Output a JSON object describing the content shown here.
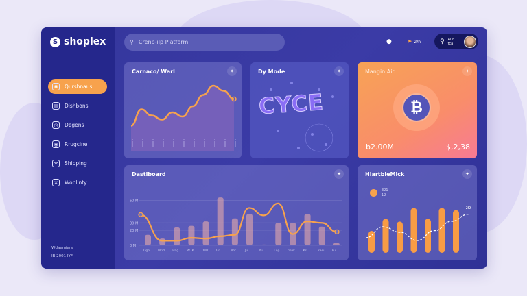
{
  "brand": {
    "name": "shoplex"
  },
  "sidebar": {
    "items": [
      {
        "label": "Qurshnaus",
        "icon": "dashboard-icon",
        "active": true
      },
      {
        "label": "Dishbons",
        "icon": "layout-icon"
      },
      {
        "label": "Degens",
        "icon": "clock-icon"
      },
      {
        "label": "Rrugcine",
        "icon": "image-icon"
      },
      {
        "label": "Shipping",
        "icon": "globe-icon"
      },
      {
        "label": "Woplinty",
        "icon": "shuffle-icon"
      }
    ],
    "footer_line1": "Wdaemiars",
    "footer_line2": "IB 2001 IYF"
  },
  "header": {
    "search_placeholder": "Crenp-ilp Platform",
    "notification_count": "2/h",
    "user_line1": "Aun",
    "user_line2": "fca"
  },
  "cards": {
    "trend": {
      "title": "Carnaco/ Warl"
    },
    "mode": {
      "title": "Dy Mode",
      "art_text": "CYCE"
    },
    "crypto": {
      "title": "Mangin Aid",
      "left_value": "b2.00M",
      "right_value": "$,2,38",
      "icon": "bitcoin-icon"
    },
    "dashboard": {
      "title": "Dastlboard"
    },
    "heartbeat": {
      "title": "HlartbleMick",
      "legend_line1": "321",
      "legend_line2": "12",
      "end_label": "2Kt"
    }
  },
  "colors": {
    "accent": "#f7a24d",
    "sidebar": "#25278c",
    "panel": "#3b3ba6"
  },
  "chart_data": [
    {
      "type": "line",
      "values": [
        10,
        42,
        30,
        22,
        36,
        28,
        48,
        70,
        88,
        78,
        62
      ]
    },
    {
      "type": "bar",
      "title": "Dastlboard",
      "yticks": [
        "0 M",
        "20 M",
        "30 M",
        "60 M"
      ],
      "ylim": [
        0,
        66
      ],
      "categories": [
        "Ogo",
        "Mrid",
        "Hag",
        "WTK",
        "DMK",
        "Gri",
        "Nbt",
        "Jul",
        "Nu",
        "Lop",
        "Slek",
        "Ks",
        "Raeu",
        "Ful"
      ],
      "bars": [
        14,
        9,
        24,
        26,
        32,
        64,
        36,
        42,
        1,
        30,
        30,
        42,
        25,
        3
      ],
      "line": [
        41,
        6,
        6,
        10,
        9,
        12,
        14,
        50,
        40,
        56,
        15,
        32,
        30,
        18
      ]
    },
    {
      "type": "bar",
      "title": "HlartbleMick",
      "bars": [
        40,
        62,
        57,
        82,
        62,
        82,
        78
      ],
      "line": [
        15,
        35,
        25,
        10,
        28,
        45,
        58
      ]
    }
  ]
}
